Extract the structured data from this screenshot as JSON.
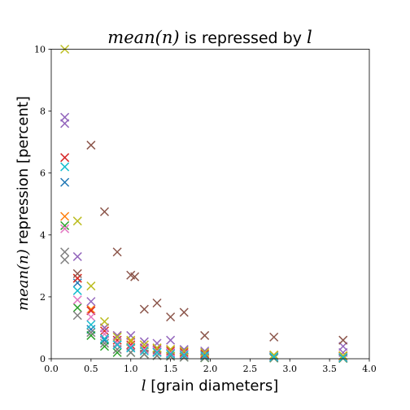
{
  "chart_data": {
    "type": "scatter",
    "title_math": "mean(n)",
    "title_text": " is repressed by ",
    "title_var": "l",
    "xlabel_var": "l",
    "xlabel_text": " [grain diameters]",
    "ylabel_math": "mean(n)",
    "ylabel_text": " repression [percent]",
    "xlim": [
      0.0,
      4.0
    ],
    "ylim": [
      0,
      10
    ],
    "xticks": [
      0.0,
      0.5,
      1.0,
      1.5,
      2.0,
      2.5,
      3.0,
      3.5,
      4.0
    ],
    "xtick_labels": [
      "0.0",
      "0.5",
      "1.0",
      "1.5",
      "2.0",
      "2.5",
      "3.0",
      "3.5",
      "4.0"
    ],
    "yticks": [
      0,
      2,
      4,
      6,
      8,
      10
    ],
    "ytick_labels": [
      "0",
      "2",
      "4",
      "6",
      "8",
      "10"
    ],
    "marker": "x",
    "grid": false,
    "series": [
      {
        "color": "#1f77b4",
        "x": [
          0.17,
          0.33,
          0.5,
          0.67,
          0.83,
          1.0,
          1.17,
          1.33,
          1.5,
          1.67,
          1.93,
          2.8,
          3.67
        ],
        "y": [
          5.7,
          2.45,
          0.95,
          0.6,
          0.45,
          0.35,
          0.3,
          0.22,
          0.18,
          0.15,
          0.1,
          0.05,
          0.03
        ]
      },
      {
        "color": "#ff7f0e",
        "x": [
          0.17,
          0.33,
          0.5,
          0.67,
          0.83,
          1.0,
          1.17,
          1.33,
          1.5,
          1.67,
          1.93,
          2.8,
          3.67
        ],
        "y": [
          4.6,
          2.6,
          1.6,
          1.0,
          0.75,
          0.55,
          0.45,
          0.35,
          0.3,
          0.25,
          0.2,
          0.12,
          0.1
        ]
      },
      {
        "color": "#2ca02c",
        "x": [
          0.17,
          0.33,
          0.5,
          0.67,
          0.83,
          1.0,
          1.17,
          1.33,
          1.5,
          1.67,
          1.93,
          2.8,
          3.67
        ],
        "y": [
          4.3,
          1.65,
          0.75,
          0.4,
          0.2,
          0.2,
          0.15,
          0.1,
          0.08,
          0.05,
          0.03,
          0.02,
          0.01
        ]
      },
      {
        "color": "#d62728",
        "x": [
          0.17,
          0.33,
          0.5,
          0.67,
          0.83,
          1.0,
          1.17,
          1.33,
          1.5,
          1.67,
          1.93,
          2.8,
          3.67
        ],
        "y": [
          6.5,
          2.6,
          1.55,
          0.9,
          0.6,
          0.45,
          0.35,
          0.3,
          0.25,
          0.2,
          0.15,
          0.1,
          0.08
        ]
      },
      {
        "color": "#9467bd",
        "x": [
          0.17,
          0.17,
          0.33,
          0.5,
          0.67,
          0.83,
          1.0,
          1.17,
          1.33,
          1.5,
          1.67,
          1.93,
          2.8,
          3.67,
          3.67
        ],
        "y": [
          7.8,
          7.6,
          3.3,
          1.85,
          1.0,
          0.75,
          0.75,
          0.55,
          0.5,
          0.6,
          0.3,
          0.25,
          0.1,
          0.4,
          0.2
        ]
      },
      {
        "color": "#8c564b",
        "x": [
          0.33,
          0.5,
          0.67,
          0.83,
          1.0,
          1.05,
          1.17,
          1.33,
          1.5,
          1.67,
          1.93,
          2.8,
          3.67
        ],
        "y": [
          2.75,
          6.9,
          4.75,
          3.45,
          2.7,
          2.65,
          1.6,
          1.8,
          1.35,
          1.5,
          0.75,
          0.7,
          0.6
        ]
      },
      {
        "color": "#e377c2",
        "x": [
          0.17,
          0.33,
          0.5,
          0.67,
          0.83,
          1.0,
          1.17,
          1.33,
          1.5,
          1.67,
          1.93,
          2.8,
          3.67
        ],
        "y": [
          4.2,
          1.9,
          1.35,
          0.8,
          0.5,
          0.4,
          0.3,
          0.25,
          0.2,
          0.15,
          0.1,
          0.07,
          0.05
        ]
      },
      {
        "color": "#7f7f7f",
        "x": [
          0.17,
          0.17,
          0.33,
          0.5,
          0.67,
          0.83,
          1.0,
          1.17,
          1.33,
          1.5,
          1.67,
          1.93,
          2.8,
          3.67
        ],
        "y": [
          3.45,
          3.2,
          1.4,
          0.85,
          0.5,
          0.3,
          0.2,
          0.15,
          0.1,
          0.08,
          0.05,
          0.04,
          0.03,
          0.02
        ]
      },
      {
        "color": "#bcbd22",
        "x": [
          0.17,
          0.33,
          0.5,
          0.67,
          0.83,
          1.0,
          1.17,
          1.33,
          1.5,
          1.67,
          1.93,
          2.8,
          3.67
        ],
        "y": [
          10.0,
          4.45,
          2.35,
          1.2,
          0.7,
          0.6,
          0.45,
          0.35,
          0.3,
          0.25,
          0.2,
          0.12,
          0.1
        ]
      },
      {
        "color": "#17becf",
        "x": [
          0.17,
          0.33,
          0.5,
          0.67,
          0.83,
          1.0,
          1.17,
          1.33,
          1.5,
          1.67,
          1.93,
          2.8,
          3.67
        ],
        "y": [
          6.2,
          2.2,
          1.1,
          0.65,
          0.45,
          0.35,
          0.25,
          0.2,
          0.15,
          0.12,
          0.1,
          0.06,
          0.04
        ]
      }
    ]
  }
}
